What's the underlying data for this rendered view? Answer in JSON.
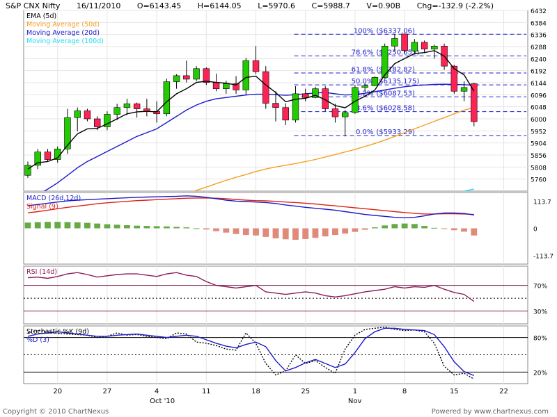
{
  "header": {
    "symbol": "S&P CNX Nifty",
    "date": "16/11/2010",
    "open": "O=6143.45",
    "high": "H=6144.05",
    "low": "L=5970.6",
    "close": "C=5988.7",
    "volume": "V=0.90B",
    "change": "Chg=-132.9 (-2.2%)"
  },
  "footer": {
    "copyright": "Copyright © 2010 ChartNexus",
    "powered": "Powered by www.chartnexus.com"
  },
  "colors": {
    "up": "#22cc00",
    "down": "#ff2255",
    "ema": "#000000",
    "ma50": "#f5a020",
    "ma20": "#1a1acc",
    "ma100": "#22ddee",
    "macd": "#1a1acc",
    "signal": "#dd2211",
    "hist_pos": "#66aa44",
    "hist_neg": "#e08a7a",
    "rsi": "#8a1a5a",
    "stochK": "#000000",
    "stochD": "#1a1acc",
    "fib": "#1a1acc"
  },
  "chart_data": [
    {
      "type": "candlestick",
      "panel": "price",
      "legend": [
        {
          "label": "EMA (5d)",
          "color": "#000000"
        },
        {
          "label": "Moving Average (50d)",
          "color": "#f5a020"
        },
        {
          "label": "Moving Average (20d)",
          "color": "#1a1acc"
        },
        {
          "label": "Moving Average (100d)",
          "color": "#22ddee"
        }
      ],
      "yrange": [
        5712,
        6432
      ],
      "y_ticks": [
        "6432",
        "6384",
        "6336",
        "6288",
        "6240",
        "6192",
        "6144",
        "6096",
        "6048",
        "6000",
        "5952",
        "5904",
        "5856",
        "5808",
        "5760"
      ],
      "x_ticks": [
        {
          "label": "20",
          "index": 3
        },
        {
          "label": "27",
          "index": 8
        },
        {
          "label": "4",
          "index": 13
        },
        {
          "label": "11",
          "index": 18
        },
        {
          "label": "18",
          "index": 23
        },
        {
          "label": "25",
          "index": 28
        },
        {
          "label": "1",
          "index": 33
        },
        {
          "label": "8",
          "index": 38
        },
        {
          "label": "15",
          "index": 43
        },
        {
          "label": "22",
          "index": 48
        }
      ],
      "x_month_labels": [
        {
          "label": "Oct '10",
          "index": 13
        },
        {
          "label": "Nov",
          "index": 33
        }
      ],
      "x_count": 51,
      "candles": [
        {
          "o": 5775,
          "h": 5830,
          "l": 5765,
          "c": 5815
        },
        {
          "o": 5815,
          "h": 5880,
          "l": 5800,
          "c": 5868
        },
        {
          "o": 5868,
          "h": 5880,
          "l": 5830,
          "c": 5838
        },
        {
          "o": 5838,
          "h": 5890,
          "l": 5825,
          "c": 5880
        },
        {
          "o": 5880,
          "h": 6040,
          "l": 5860,
          "c": 6005
        },
        {
          "o": 6005,
          "h": 6045,
          "l": 5950,
          "c": 6032
        },
        {
          "o": 6032,
          "h": 6040,
          "l": 5990,
          "c": 6000
        },
        {
          "o": 6000,
          "h": 6010,
          "l": 5955,
          "c": 5968
        },
        {
          "o": 5968,
          "h": 6030,
          "l": 5955,
          "c": 6018
        },
        {
          "o": 6018,
          "h": 6060,
          "l": 5995,
          "c": 6045
        },
        {
          "o": 6045,
          "h": 6080,
          "l": 6015,
          "c": 6060
        },
        {
          "o": 6060,
          "h": 6065,
          "l": 6005,
          "c": 6040
        },
        {
          "o": 6040,
          "h": 6080,
          "l": 6010,
          "c": 6030
        },
        {
          "o": 6030,
          "h": 6070,
          "l": 5985,
          "c": 6020
        },
        {
          "o": 6020,
          "h": 6160,
          "l": 6010,
          "c": 6148
        },
        {
          "o": 6148,
          "h": 6178,
          "l": 6120,
          "c": 6172
        },
        {
          "o": 6172,
          "h": 6232,
          "l": 6145,
          "c": 6158
        },
        {
          "o": 6158,
          "h": 6210,
          "l": 6150,
          "c": 6200
        },
        {
          "o": 6200,
          "h": 6205,
          "l": 6135,
          "c": 6145
        },
        {
          "o": 6145,
          "h": 6180,
          "l": 6110,
          "c": 6120
        },
        {
          "o": 6120,
          "h": 6152,
          "l": 6100,
          "c": 6140
        },
        {
          "o": 6140,
          "h": 6170,
          "l": 6100,
          "c": 6115
        },
        {
          "o": 6115,
          "h": 6243,
          "l": 6095,
          "c": 6232
        },
        {
          "o": 6232,
          "h": 6290,
          "l": 6178,
          "c": 6188
        },
        {
          "o": 6188,
          "h": 6210,
          "l": 6040,
          "c": 6062
        },
        {
          "o": 6062,
          "h": 6110,
          "l": 5990,
          "c": 6045
        },
        {
          "o": 6045,
          "h": 6062,
          "l": 5975,
          "c": 5995
        },
        {
          "o": 5995,
          "h": 6130,
          "l": 5985,
          "c": 6100
        },
        {
          "o": 6100,
          "h": 6120,
          "l": 6070,
          "c": 6085
        },
        {
          "o": 6085,
          "h": 6128,
          "l": 6082,
          "c": 6120
        },
        {
          "o": 6120,
          "h": 6130,
          "l": 6030,
          "c": 6040
        },
        {
          "o": 6040,
          "h": 6060,
          "l": 5985,
          "c": 6008
        },
        {
          "o": 6008,
          "h": 6035,
          "l": 5930,
          "c": 6025
        },
        {
          "o": 6025,
          "h": 6135,
          "l": 6020,
          "c": 6125
        },
        {
          "o": 6125,
          "h": 6140,
          "l": 6110,
          "c": 6132
        },
        {
          "o": 6132,
          "h": 6170,
          "l": 6130,
          "c": 6165
        },
        {
          "o": 6165,
          "h": 6300,
          "l": 6160,
          "c": 6290
        },
        {
          "o": 6290,
          "h": 6337,
          "l": 6270,
          "c": 6320
        },
        {
          "o": 6338,
          "h": 6340,
          "l": 6262,
          "c": 6272
        },
        {
          "o": 6270,
          "h": 6318,
          "l": 6258,
          "c": 6305
        },
        {
          "o": 6305,
          "h": 6312,
          "l": 6262,
          "c": 6278
        },
        {
          "o": 6278,
          "h": 6296,
          "l": 6240,
          "c": 6290
        },
        {
          "o": 6290,
          "h": 6300,
          "l": 6195,
          "c": 6210
        },
        {
          "o": 6210,
          "h": 6215,
          "l": 6100,
          "c": 6110
        },
        {
          "o": 6110,
          "h": 6150,
          "l": 6070,
          "c": 6125
        },
        {
          "o": 6140,
          "h": 6144,
          "l": 5970,
          "c": 5989
        }
      ],
      "ema5": [
        5800,
        5825,
        5830,
        5845,
        5895,
        5940,
        5960,
        5962,
        5980,
        6000,
        6020,
        6028,
        6030,
        6028,
        6068,
        6100,
        6120,
        6145,
        6150,
        6145,
        6142,
        6135,
        6165,
        6170,
        6135,
        6105,
        6068,
        6078,
        6082,
        6094,
        6076,
        6053,
        6044,
        6070,
        6090,
        6115,
        6175,
        6220,
        6240,
        6260,
        6264,
        6272,
        6250,
        6200,
        6175,
        6110
      ],
      "ma20": [
        5670,
        5695,
        5720,
        5745,
        5775,
        5805,
        5830,
        5850,
        5870,
        5890,
        5910,
        5930,
        5945,
        5960,
        5985,
        6010,
        6035,
        6055,
        6070,
        6080,
        6085,
        6090,
        6095,
        6098,
        6098,
        6096,
        6094,
        6096,
        6100,
        6103,
        6105,
        6100,
        6095,
        6097,
        6102,
        6108,
        6115,
        6122,
        6128,
        6132,
        6135,
        6137,
        6138,
        6137,
        6136,
        6134
      ],
      "ma50": [
        null,
        null,
        null,
        null,
        null,
        null,
        null,
        null,
        null,
        null,
        5610,
        5625,
        5640,
        5655,
        5670,
        5685,
        5700,
        5715,
        5728,
        5742,
        5755,
        5767,
        5778,
        5790,
        5800,
        5808,
        5815,
        5822,
        5830,
        5838,
        5848,
        5858,
        5868,
        5878,
        5890,
        5902,
        5915,
        5930,
        5945,
        5960,
        5975,
        5990,
        6005,
        6020,
        6035,
        6045
      ],
      "ma100": [
        null,
        null,
        null,
        null,
        null,
        null,
        null,
        null,
        null,
        null,
        null,
        null,
        null,
        null,
        null,
        null,
        null,
        null,
        null,
        null,
        null,
        null,
        null,
        null,
        null,
        null,
        null,
        null,
        null,
        null,
        null,
        null,
        null,
        null,
        null,
        null,
        null,
        null,
        null,
        null,
        null,
        5690,
        5700,
        5705,
        5712,
        5720
      ],
      "fib_levels": [
        {
          "pct": "100%",
          "price": 6337.06,
          "label": "($6337.06)"
        },
        {
          "pct": "78.6%",
          "price": 6250.653,
          "label": "($6250.653)"
        },
        {
          "pct": "61.8%",
          "price": 6182.82,
          "label": "($6182.82)"
        },
        {
          "pct": "50.0%",
          "price": 6135.175,
          "label": "($6135.175)"
        },
        {
          "pct": "38.2%",
          "price": 6087.53,
          "label": "($6087.53)"
        },
        {
          "pct": "23.6%",
          "price": 6028.58,
          "label": "($6028.58)"
        },
        {
          "pct": "0.0%",
          "price": 5933.29,
          "label": "($5933.29)"
        }
      ]
    },
    {
      "type": "macd",
      "panel": "macd",
      "legend": [
        {
          "label": "MACD (26d,12d)",
          "color": "#1a1acc"
        },
        {
          "label": "Signal (9)",
          "color": "#dd2211"
        }
      ],
      "yrange": [
        -150,
        150
      ],
      "y_ticks": [
        "113.7",
        "0",
        "-113.7"
      ],
      "y_tick_values": [
        113.7,
        0,
        -113.7
      ],
      "macd": [
        95,
        100,
        105,
        110,
        115,
        118,
        120,
        122,
        124,
        126,
        128,
        130,
        131,
        132,
        133,
        134,
        136,
        134,
        130,
        124,
        118,
        114,
        112,
        110,
        108,
        104,
        98,
        93,
        88,
        84,
        80,
        76,
        70,
        64,
        58,
        54,
        50,
        46,
        44,
        46,
        52,
        60,
        64,
        64,
        62,
        56
      ],
      "signal": [
        65,
        70,
        76,
        82,
        88,
        93,
        98,
        103,
        107,
        110,
        113,
        116,
        118,
        120,
        122,
        124,
        126,
        127,
        127,
        126,
        124,
        121,
        118,
        116,
        115,
        113,
        110,
        108,
        105,
        102,
        98,
        94,
        90,
        86,
        82,
        78,
        74,
        70,
        66,
        63,
        60,
        60,
        61,
        61,
        60,
        58
      ],
      "histogram": [
        24,
        26,
        27,
        27,
        26,
        25,
        23,
        20,
        17,
        15,
        13,
        11,
        10,
        9,
        8,
        6,
        4,
        0,
        -5,
        -12,
        -18,
        -24,
        -28,
        -30,
        -36,
        -42,
        -46,
        -48,
        -45,
        -40,
        -34,
        -28,
        -22,
        -15,
        -6,
        4,
        12,
        18,
        20,
        18,
        10,
        2,
        -3,
        -8,
        -14,
        -30
      ]
    },
    {
      "type": "line",
      "panel": "rsi",
      "legend": [
        {
          "label": "RSI (14d)",
          "color": "#8a1a5a"
        }
      ],
      "yrange": [
        10,
        100
      ],
      "y_ticks": [
        "70%",
        "30%"
      ],
      "y_tick_values": [
        70,
        30
      ],
      "rsi": [
        82,
        83,
        81,
        84,
        88,
        90,
        87,
        83,
        85,
        87,
        88,
        88,
        86,
        84,
        88,
        90,
        86,
        84,
        76,
        70,
        68,
        66,
        68,
        70,
        60,
        58,
        56,
        58,
        60,
        58,
        54,
        52,
        54,
        57,
        60,
        62,
        64,
        68,
        66,
        68,
        67,
        70,
        64,
        59,
        56,
        45
      ]
    },
    {
      "type": "line",
      "panel": "stochastic",
      "legend": [
        {
          "label": "Stochastic %K (9d)",
          "color": "#000000"
        },
        {
          "label": "%D (3)",
          "color": "#1a1acc"
        }
      ],
      "yrange": [
        0,
        100
      ],
      "y_ticks": [
        "80%",
        "20%"
      ],
      "y_tick_values": [
        80,
        20
      ],
      "stochK": [
        88,
        92,
        90,
        87,
        86,
        85,
        84,
        80,
        82,
        88,
        84,
        85,
        82,
        80,
        78,
        88,
        86,
        72,
        70,
        66,
        60,
        58,
        88,
        70,
        35,
        15,
        22,
        50,
        35,
        40,
        28,
        18,
        60,
        84,
        94,
        96,
        98,
        94,
        92,
        93,
        90,
        70,
        30,
        15,
        18,
        8
      ],
      "stochD": [
        82,
        86,
        88,
        90,
        88,
        86,
        84,
        82,
        82,
        84,
        85,
        86,
        84,
        82,
        80,
        82,
        84,
        82,
        76,
        70,
        65,
        62,
        68,
        72,
        64,
        40,
        22,
        28,
        36,
        42,
        35,
        28,
        34,
        54,
        78,
        90,
        96,
        96,
        94,
        93,
        92,
        85,
        64,
        38,
        21,
        14
      ]
    }
  ]
}
